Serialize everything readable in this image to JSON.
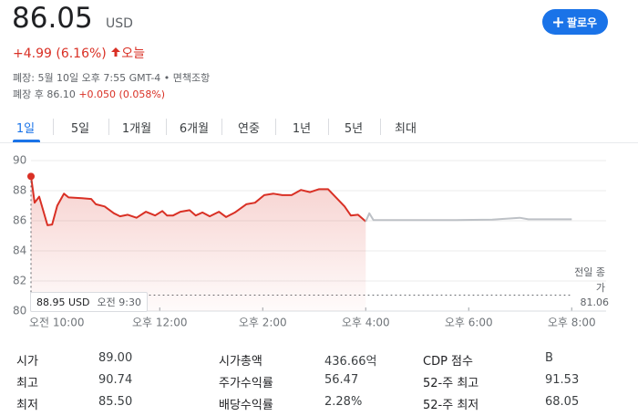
{
  "header": {
    "price": "86.05",
    "currency": "USD",
    "change": "+4.99 (6.16%)",
    "period": "오늘",
    "closed_info": "폐장: 5월 10일 오후 7:55 GMT-4 • 면책조항",
    "after_hours": "폐장 후 86.10",
    "after_hours_change": "+0.050 (0.058%)",
    "follow": "팔로우"
  },
  "tabs": [
    "1일",
    "5일",
    "1개월",
    "6개월",
    "연중",
    "1년",
    "5년",
    "최대"
  ],
  "chart_data": {
    "type": "line",
    "series": [
      {
        "color": "#d93025",
        "x": [
          9.5,
          9.57,
          9.66,
          9.82,
          9.91,
          10.01,
          10.14,
          10.23,
          10.49,
          10.67,
          10.76,
          10.93,
          11.11,
          11.23,
          11.38,
          11.55,
          11.73,
          11.91,
          12.05,
          12.14,
          12.26,
          12.4,
          12.58,
          12.7,
          12.83,
          12.97,
          13.15,
          13.29,
          13.46,
          13.68,
          13.85,
          14.03,
          14.21,
          14.38,
          14.56,
          14.74,
          14.92,
          15.09,
          15.27,
          15.45,
          15.59,
          15.71,
          15.85,
          16.0
        ],
        "values": [
          88.95,
          87.2,
          87.6,
          85.7,
          85.75,
          87.0,
          87.8,
          87.55,
          87.5,
          87.45,
          87.1,
          86.95,
          86.5,
          86.3,
          86.4,
          86.2,
          86.6,
          86.35,
          86.65,
          86.35,
          86.35,
          86.6,
          86.7,
          86.35,
          86.55,
          86.3,
          86.6,
          86.25,
          86.55,
          87.1,
          87.2,
          87.7,
          87.8,
          87.7,
          87.7,
          88.05,
          87.9,
          88.1,
          88.1,
          87.45,
          86.95,
          86.35,
          86.4,
          85.95
        ]
      },
      {
        "color": "#bdc1c6",
        "x": [
          16.0,
          16.07,
          16.15,
          17.75,
          18.46,
          18.99,
          19.16,
          20.0
        ],
        "values": [
          85.95,
          86.5,
          86.05,
          86.05,
          86.08,
          86.2,
          86.1,
          86.1
        ]
      }
    ],
    "xlim": [
      9.5,
      20.7
    ],
    "ylim": [
      80,
      90
    ],
    "yticks": [
      80,
      82,
      84,
      86,
      88,
      90
    ],
    "xticks": [
      {
        "value": 10,
        "label": "오전 10:00"
      },
      {
        "value": 12,
        "label": "오후 12:00"
      },
      {
        "value": 14,
        "label": "오후 2:00"
      },
      {
        "value": 16,
        "label": "오후 4:00"
      },
      {
        "value": 18,
        "label": "오후 6:00"
      },
      {
        "value": 20,
        "label": "오후 8:00"
      }
    ],
    "grid": true,
    "prev_close": {
      "label": "전일 종가",
      "value": 81.06
    },
    "tooltip": {
      "price": "88.95 USD",
      "time": "오전 9:30"
    }
  },
  "stats": [
    [
      "시가",
      "89.00",
      "시가총액",
      "436.66억",
      "CDP 점수",
      "B"
    ],
    [
      "최고",
      "90.74",
      "주가수익률",
      "56.47",
      "52-주 최고",
      "91.53"
    ],
    [
      "최저",
      "85.50",
      "배당수익률",
      "2.28%",
      "52-주 최저",
      "68.05"
    ]
  ]
}
